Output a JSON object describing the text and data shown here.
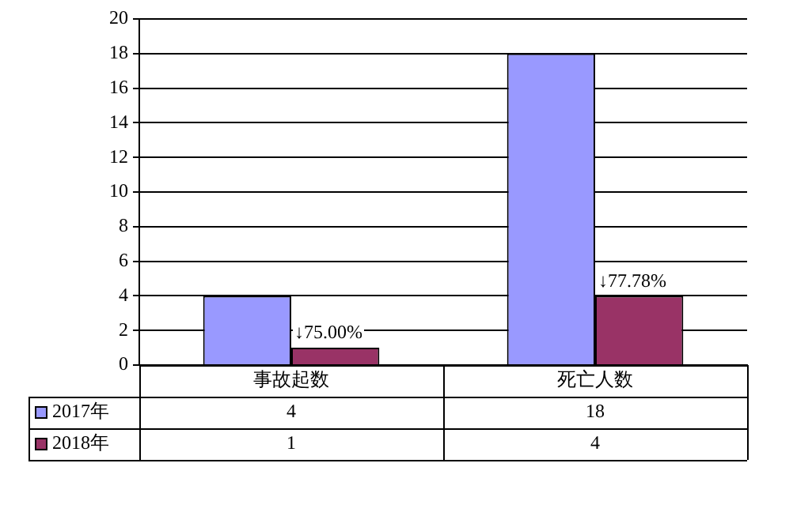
{
  "chart_data": {
    "type": "bar",
    "categories": [
      "事故起数",
      "死亡人数"
    ],
    "series": [
      {
        "name": "2017年",
        "color": "#9999ff",
        "values": [
          4,
          18
        ]
      },
      {
        "name": "2018年",
        "color": "#993366",
        "values": [
          1,
          4
        ]
      }
    ],
    "ylim": [
      0,
      20
    ],
    "yticks": [
      0,
      2,
      4,
      6,
      8,
      10,
      12,
      14,
      16,
      18,
      20
    ],
    "grid": "y",
    "legend": "bottom",
    "data_labels": true,
    "annotations": [
      {
        "text": "↓75.00%",
        "x": "事故起数",
        "y": 1
      },
      {
        "text": "↓77.78%",
        "x": "死亡人数",
        "y": 4
      }
    ]
  }
}
